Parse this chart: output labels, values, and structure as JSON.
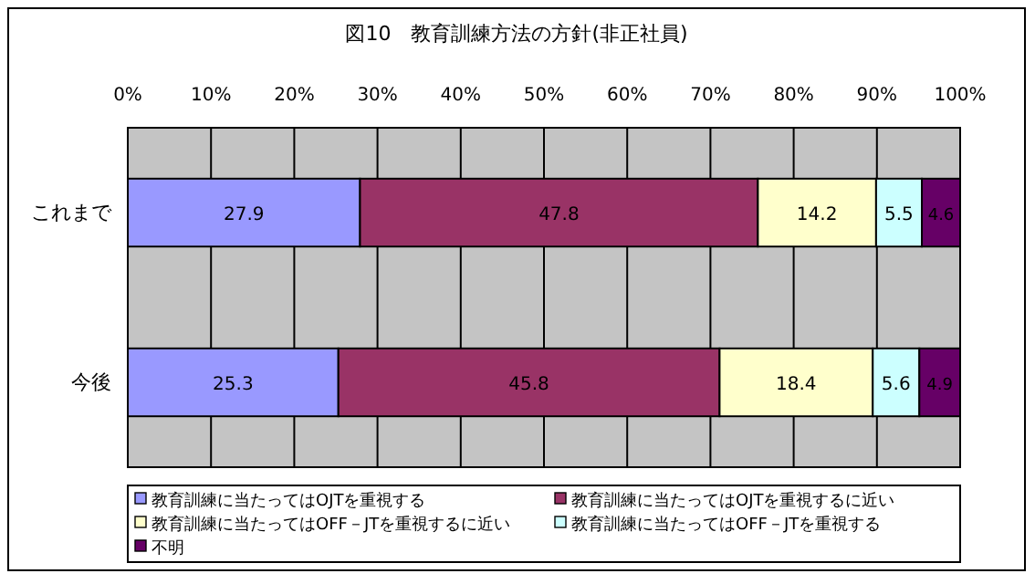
{
  "chart_data": {
    "type": "bar",
    "orientation": "horizontal",
    "stacked": true,
    "title": "図10　教育訓練方法の方針(非正社員)",
    "categories": [
      "これまで",
      "今後"
    ],
    "series": [
      {
        "name": "教育訓練に当たってはOJTを重視する",
        "color": "#9999ff",
        "values": [
          27.9,
          25.3
        ]
      },
      {
        "name": "教育訓練に当たってはOJTを重視するに近い",
        "color": "#993366",
        "values": [
          47.8,
          45.8
        ]
      },
      {
        "name": "教育訓練に当たってはOFF－JTを重視するに近い",
        "color": "#ffffcc",
        "values": [
          14.2,
          18.4
        ]
      },
      {
        "name": "教育訓練に当たってはOFF－JTを重視する",
        "color": "#ccffff",
        "values": [
          5.5,
          5.6
        ]
      },
      {
        "name": "不明",
        "color": "#660066",
        "values": [
          4.6,
          4.9
        ]
      }
    ],
    "xlim": [
      0,
      100
    ],
    "xticks": [
      {
        "value": 0,
        "label": "0%"
      },
      {
        "value": 10,
        "label": "10%"
      },
      {
        "value": 20,
        "label": "20%"
      },
      {
        "value": 30,
        "label": "30%"
      },
      {
        "value": 40,
        "label": "40%"
      },
      {
        "value": 50,
        "label": "50%"
      },
      {
        "value": 60,
        "label": "60%"
      },
      {
        "value": 70,
        "label": "70%"
      },
      {
        "value": 80,
        "label": "80%"
      },
      {
        "value": 90,
        "label": "90%"
      },
      {
        "value": 100,
        "label": "100%"
      }
    ],
    "grid": "x",
    "data_labels": true,
    "legend": "bottom"
  }
}
